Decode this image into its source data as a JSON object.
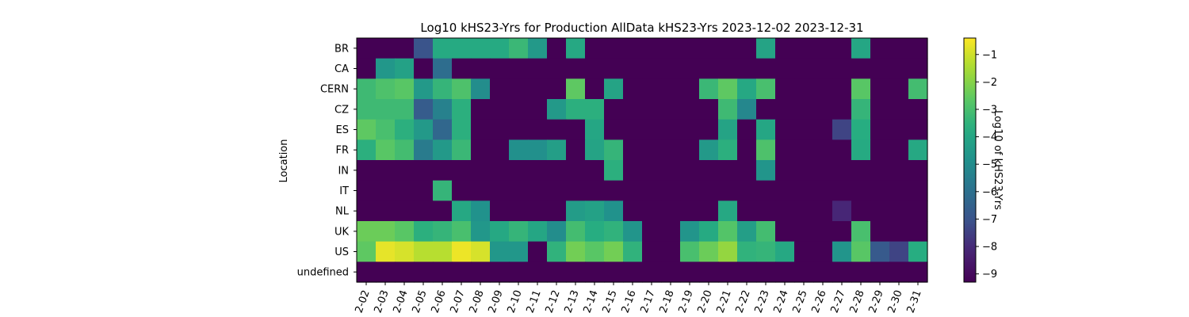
{
  "chart_data": {
    "type": "heatmap",
    "title": "Log10 kHS23-Yrs for Production AllData kHS23-Yrs 2023-12-02 2023-12-31",
    "xlabel": "",
    "ylabel": "Location",
    "colorbar_label": "Log10 of kHS23-Yrs",
    "colormap": "viridis",
    "color_range": [
      -9.3,
      -0.4
    ],
    "colorbar_ticks": [
      "-1",
      "-2",
      "-3",
      "-4",
      "-5",
      "-6",
      "-7",
      "-8",
      "-9"
    ],
    "x": [
      "2-02",
      "2-03",
      "2-04",
      "2-05",
      "2-06",
      "2-07",
      "2-08",
      "2-09",
      "2-10",
      "2-11",
      "2-12",
      "2-13",
      "2-14",
      "2-15",
      "2-16",
      "2-17",
      "2-18",
      "2-19",
      "2-20",
      "2-21",
      "2-22",
      "2-23",
      "2-24",
      "2-25",
      "2-26",
      "2-27",
      "2-28",
      "2-29",
      "2-30",
      "2-31"
    ],
    "y": [
      "BR",
      "CA",
      "CERN",
      "CZ",
      "ES",
      "FR",
      "IN",
      "IT",
      "NL",
      "UK",
      "US",
      "undefined"
    ],
    "z": [
      [
        -9.3,
        -9.3,
        -9.3,
        -7.0,
        -3.8,
        -3.8,
        -3.8,
        -3.8,
        -3.3,
        -4.5,
        -9.3,
        -3.9,
        -9.3,
        -9.3,
        -9.3,
        -9.3,
        -9.3,
        -9.3,
        -9.3,
        -9.3,
        -9.3,
        -4.1,
        -9.3,
        -9.3,
        -9.3,
        -9.3,
        -4.0,
        -9.3,
        -9.3,
        -9.3
      ],
      [
        -9.3,
        -4.6,
        -4.2,
        -9.3,
        -6.1,
        -9.3,
        -9.3,
        -9.3,
        -9.3,
        -9.3,
        -9.3,
        -9.3,
        -9.3,
        -9.3,
        -9.3,
        -9.3,
        -9.3,
        -9.3,
        -9.3,
        -9.3,
        -9.3,
        -9.3,
        -9.3,
        -9.3,
        -9.3,
        -9.3,
        -9.3,
        -9.3,
        -9.3,
        -9.3
      ],
      [
        -3.2,
        -2.9,
        -2.7,
        -4.5,
        -3.4,
        -2.9,
        -5.0,
        -9.3,
        -9.3,
        -9.3,
        -9.3,
        -2.6,
        -9.3,
        -4.1,
        -9.3,
        -9.3,
        -9.3,
        -9.3,
        -3.3,
        -2.6,
        -3.9,
        -3.0,
        -9.3,
        -9.3,
        -9.3,
        -9.3,
        -2.7,
        -9.3,
        -9.3,
        -3.1
      ],
      [
        -3.2,
        -3.2,
        -3.2,
        -6.7,
        -5.4,
        -3.6,
        -9.3,
        -9.3,
        -9.3,
        -9.3,
        -4.5,
        -3.6,
        -3.6,
        -9.3,
        -9.3,
        -9.3,
        -9.3,
        -9.3,
        -9.3,
        -3.2,
        -5.2,
        -9.3,
        -9.3,
        -9.3,
        -9.3,
        -9.3,
        -3.4,
        -9.3,
        -9.3,
        -9.3
      ],
      [
        -2.6,
        -3.0,
        -3.6,
        -4.5,
        -6.3,
        -3.6,
        -9.3,
        -9.3,
        -9.3,
        -9.3,
        -9.3,
        -9.3,
        -4.0,
        -9.3,
        -9.3,
        -9.3,
        -9.3,
        -9.3,
        -9.3,
        -4.1,
        -9.3,
        -4.0,
        -9.3,
        -9.3,
        -9.3,
        -7.4,
        -3.7,
        -9.3,
        -9.3,
        -9.3
      ],
      [
        -3.6,
        -2.7,
        -3.1,
        -5.6,
        -4.5,
        -3.3,
        -9.3,
        -9.3,
        -4.9,
        -4.9,
        -4.3,
        -9.3,
        -4.1,
        -3.4,
        -9.3,
        -9.3,
        -9.3,
        -9.3,
        -4.5,
        -3.6,
        -9.3,
        -2.9,
        -9.3,
        -9.3,
        -9.3,
        -9.3,
        -3.8,
        -9.3,
        -9.3,
        -3.9
      ],
      [
        -9.3,
        -9.3,
        -9.3,
        -9.3,
        -9.3,
        -9.3,
        -9.3,
        -9.3,
        -9.3,
        -9.3,
        -9.3,
        -9.3,
        -9.3,
        -3.6,
        -9.3,
        -9.3,
        -9.3,
        -9.3,
        -9.3,
        -9.3,
        -9.3,
        -4.7,
        -9.3,
        -9.3,
        -9.3,
        -9.3,
        -9.3,
        -9.3,
        -9.3,
        -9.3
      ],
      [
        -9.3,
        -9.3,
        -9.3,
        -9.3,
        -3.4,
        -9.3,
        -9.3,
        -9.3,
        -9.3,
        -9.3,
        -9.3,
        -9.3,
        -9.3,
        -9.3,
        -9.3,
        -9.3,
        -9.3,
        -9.3,
        -9.3,
        -9.3,
        -9.3,
        -9.3,
        -9.3,
        -9.3,
        -9.3,
        -9.3,
        -9.3,
        -9.3,
        -9.3,
        -9.3
      ],
      [
        -9.3,
        -9.3,
        -9.3,
        -9.3,
        -9.3,
        -3.9,
        -4.8,
        -9.3,
        -9.3,
        -9.3,
        -9.3,
        -4.4,
        -4.2,
        -4.8,
        -9.3,
        -9.3,
        -9.3,
        -9.3,
        -9.3,
        -3.9,
        -9.3,
        -9.3,
        -9.3,
        -9.3,
        -9.3,
        -8.1,
        -9.3,
        -9.3,
        -9.3,
        -9.3
      ],
      [
        -2.4,
        -2.4,
        -2.7,
        -3.6,
        -3.4,
        -3.0,
        -4.6,
        -3.9,
        -3.4,
        -4.0,
        -5.0,
        -3.1,
        -3.7,
        -3.5,
        -4.7,
        -9.3,
        -9.3,
        -4.7,
        -3.8,
        -2.8,
        -4.3,
        -3.1,
        -9.3,
        -9.3,
        -9.3,
        -9.3,
        -3.0,
        -9.3,
        -9.3,
        -9.3
      ],
      [
        -2.6,
        -0.7,
        -0.9,
        -1.3,
        -1.3,
        -0.6,
        -0.9,
        -4.6,
        -4.6,
        -9.3,
        -3.5,
        -2.3,
        -2.7,
        -2.3,
        -3.5,
        -9.3,
        -9.3,
        -3.0,
        -2.4,
        -1.8,
        -3.5,
        -3.4,
        -3.9,
        -9.3,
        -9.3,
        -4.7,
        -2.7,
        -6.8,
        -7.4,
        -3.7
      ],
      [
        -9.3,
        -9.3,
        -9.3,
        -9.3,
        -9.3,
        -9.3,
        -9.3,
        -9.3,
        -9.3,
        -9.3,
        -9.3,
        -9.3,
        -9.3,
        -9.3,
        -9.3,
        -9.3,
        -9.3,
        -9.3,
        -9.3,
        -9.3,
        -9.3,
        -9.3,
        -9.3,
        -9.3,
        -9.3,
        -9.3,
        -9.3,
        -9.3,
        -9.3,
        -9.3
      ]
    ]
  }
}
